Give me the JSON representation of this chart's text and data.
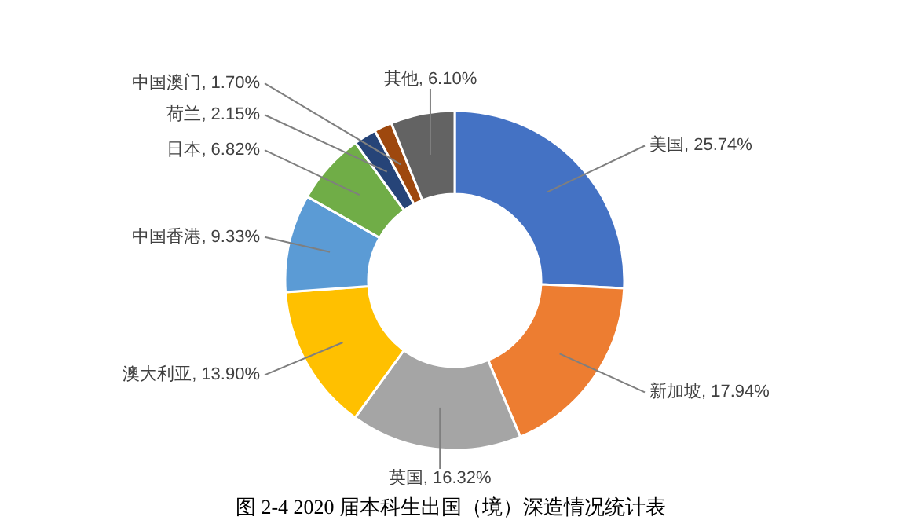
{
  "chart_data": {
    "type": "donut",
    "title": "图 2-4 2020 届本科生出国（境）深造情况统计表",
    "categories": [
      "美国",
      "新加坡",
      "英国",
      "澳大利亚",
      "中国香港",
      "日本",
      "荷兰",
      "中国澳门",
      "其他"
    ],
    "values": [
      25.74,
      17.94,
      16.32,
      13.9,
      9.33,
      6.82,
      2.15,
      1.7,
      6.1
    ],
    "value_labels": [
      "25.74%",
      "17.94%",
      "16.32%",
      "13.90%",
      "9.33%",
      "6.82%",
      "2.15%",
      "1.70%",
      "6.10%"
    ],
    "colors": [
      "#4472c4",
      "#ed7d31",
      "#a5a5a5",
      "#ffc000",
      "#5b9bd5",
      "#70ad47",
      "#264478",
      "#9e480e",
      "#636363"
    ]
  }
}
